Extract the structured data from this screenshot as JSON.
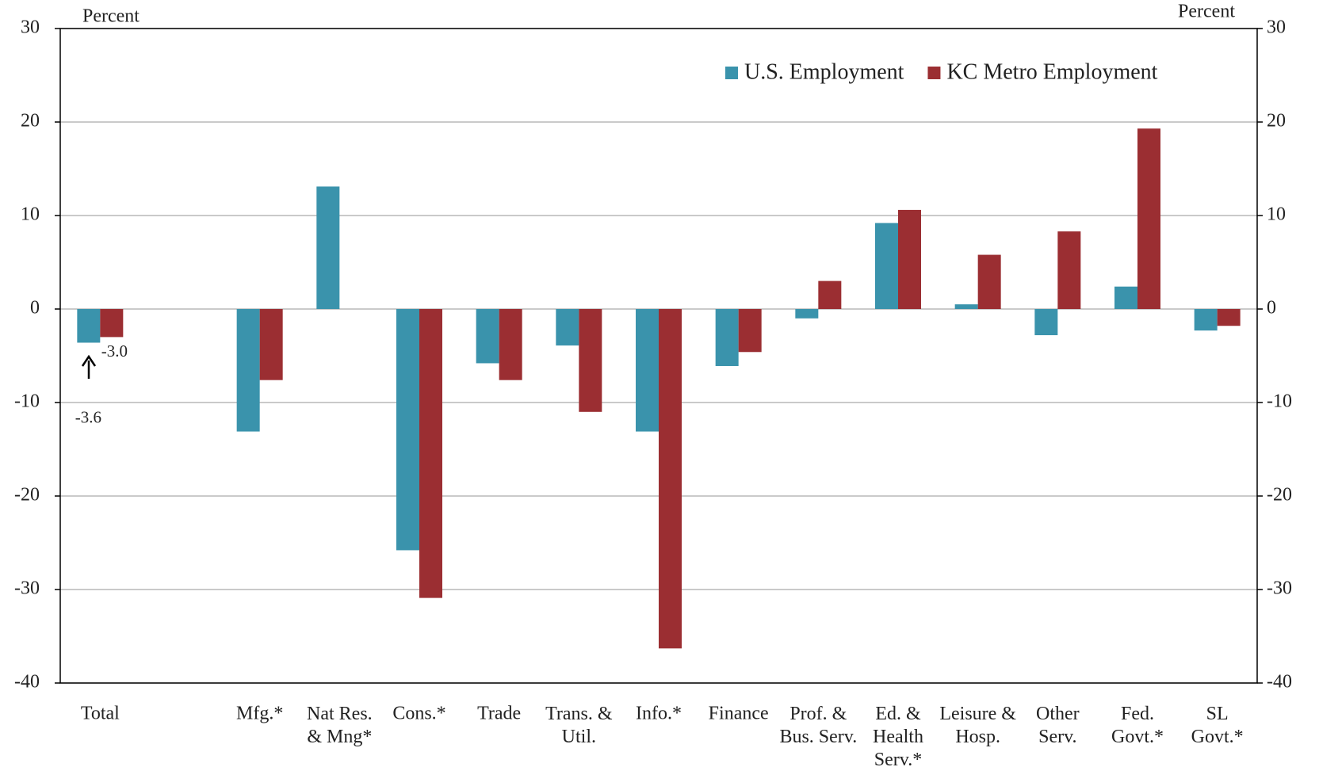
{
  "chart_data": {
    "type": "bar",
    "y_label": "Percent",
    "y2_label": "Percent",
    "categories": [
      "Total",
      null,
      "Mfg.*",
      "Nat Res.\n& Mng*",
      "Cons.*",
      "Trade",
      "Trans. &\nUtil.",
      "Info.*",
      "Finance",
      "Prof. &\nBus. Serv.",
      "Ed. &\nHealth\nServ.*",
      "Leisure &\nHosp.",
      "Other\nServ.",
      "Fed.\nGovt.*",
      "SL\nGovt.*"
    ],
    "series": [
      {
        "name": "U.S. Employment",
        "color": "#3a93ac",
        "values": [
          -3.6,
          null,
          -13.1,
          13.1,
          -25.8,
          -5.8,
          -3.9,
          -13.1,
          -6.1,
          -1.0,
          9.2,
          0.5,
          -2.8,
          2.4,
          -2.3
        ],
        "value_labels": [
          "-3.6",
          null,
          null,
          null,
          null,
          null,
          null,
          null,
          null,
          null,
          null,
          null,
          null,
          null,
          null
        ]
      },
      {
        "name": "KC Metro Employment",
        "color": "#9b2e32",
        "values": [
          -3.0,
          null,
          -7.6,
          null,
          -30.9,
          -7.6,
          -11.0,
          -36.3,
          -4.6,
          3.0,
          10.6,
          5.8,
          8.3,
          19.3,
          -1.8
        ],
        "value_labels": [
          "-3.0",
          null,
          null,
          null,
          null,
          null,
          null,
          null,
          null,
          null,
          null,
          null,
          null,
          null,
          null
        ]
      }
    ],
    "ylim": [
      -40,
      30
    ],
    "yticks": [
      -40,
      -30,
      -20,
      -10,
      0,
      10,
      20,
      30
    ],
    "y2lim": [
      -40,
      30
    ],
    "y2ticks": [
      -40,
      -30,
      -20,
      -10,
      0,
      10,
      20,
      30
    ],
    "grid": true,
    "legend": "upper right"
  }
}
